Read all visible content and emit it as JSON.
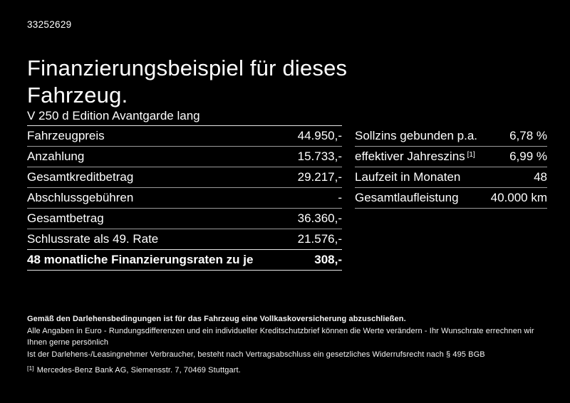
{
  "doc_id": "33252629",
  "title": "Finanzierungsbeispiel für dieses Fahrzeug.",
  "vehicle_model": "V 250 d Edition Avantgarde lang",
  "finance_table": {
    "rows": [
      {
        "label": "Fahrzeugpreis",
        "value": "44.950,-"
      },
      {
        "label": "Anzahlung",
        "value": "15.733,-"
      },
      {
        "label": "Gesamtkreditbetrag",
        "value": "29.217,-"
      },
      {
        "label": "Abschlussgebühren",
        "value": "-"
      },
      {
        "label": "Gesamtbetrag",
        "value": "36.360,-"
      },
      {
        "label": "Schlussrate als 49. Rate",
        "value": "21.576,-"
      }
    ],
    "highlight_row": {
      "label": "48 monatliche Finanzierungsraten zu je",
      "value": "308,-"
    }
  },
  "conditions_table": {
    "rows": [
      {
        "label": "Sollzins gebunden p.a.",
        "sup": "",
        "value": "6,78 %"
      },
      {
        "label": "effektiver Jahreszins",
        "sup": "[1]",
        "value": "6,99 %"
      },
      {
        "label": "Laufzeit in Monaten",
        "sup": "",
        "value": "48"
      },
      {
        "label": "Gesamtlaufleistung",
        "sup": "",
        "value": "40.000 km"
      }
    ]
  },
  "footer": {
    "bold_note": "Gemäß den Darlehensbedingungen ist für das Fahrzeug eine Vollkaskoversicherung abzuschließen.",
    "note_line1": "Alle Angaben in Euro - Rundungsdifferenzen und ein individueller Kreditschutzbrief können die Werte verändern - Ihr Wunschrate errechnen wir Ihnen gerne persönlich",
    "note_line2": "Ist der Darlehens-/Leasingnehmer Verbraucher, besteht nach Vertragsabschluss ein gesetzliches Widerrufsrecht nach § 495 BGB",
    "footnote_marker": "[1]",
    "footnote_text": "Mercedes-Benz Bank AG, Siemensstr. 7, 70469 Stuttgart."
  },
  "colors": {
    "background": "#000000",
    "text": "#ffffff",
    "separator": "#9a9a9a",
    "separator_strong": "#e8e8e8"
  }
}
